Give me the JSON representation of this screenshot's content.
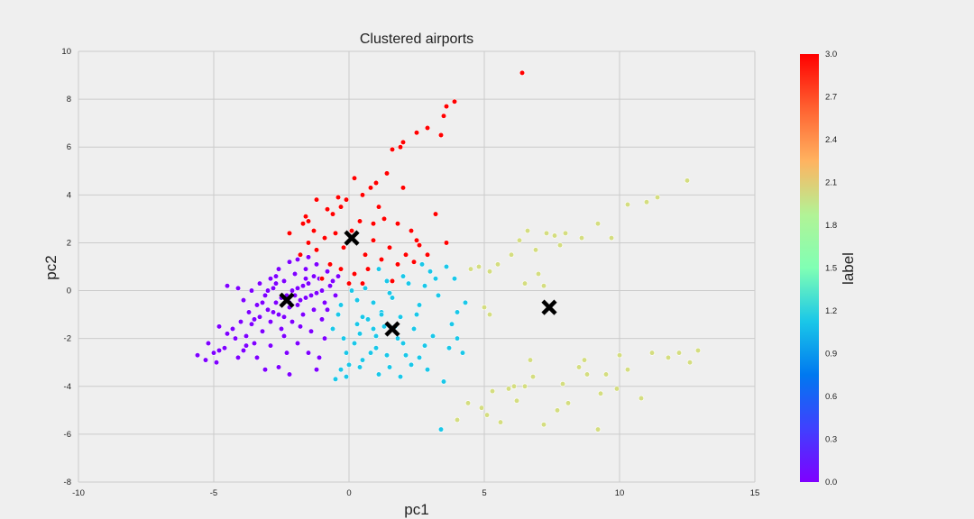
{
  "chart_data": {
    "type": "scatter",
    "title": "Clustered airports",
    "xlabel": "pc1",
    "ylabel": "pc2",
    "xlim": [
      -10,
      15
    ],
    "ylim": [
      -8,
      10
    ],
    "xticks": [
      "-10",
      "-5",
      "0",
      "5",
      "10",
      "15"
    ],
    "yticks": [
      "-8",
      "-6",
      "-4",
      "-2",
      "0",
      "2",
      "4",
      "6",
      "8",
      "10"
    ],
    "grid": true,
    "colorbar": {
      "label": "label",
      "range": [
        0.0,
        3.0
      ],
      "ticks": [
        "0.0",
        "0.3",
        "0.6",
        "0.9",
        "1.2",
        "1.5",
        "1.8",
        "2.1",
        "2.4",
        "2.7",
        "3.0"
      ],
      "colormap": "rainbow"
    },
    "clusters": [
      {
        "label": 0,
        "color": "#7f00ff",
        "points": [
          [
            -5.6,
            -2.7
          ],
          [
            -5.3,
            -2.9
          ],
          [
            -5.2,
            -2.2
          ],
          [
            -5.0,
            -2.6
          ],
          [
            -4.9,
            -3.0
          ],
          [
            -4.8,
            -2.5
          ],
          [
            -4.6,
            -2.4
          ],
          [
            -4.5,
            -1.8
          ],
          [
            -4.3,
            -1.6
          ],
          [
            -4.2,
            -2.0
          ],
          [
            -4.1,
            -2.8
          ],
          [
            -4.0,
            -1.3
          ],
          [
            -3.9,
            -2.5
          ],
          [
            -3.8,
            -1.9
          ],
          [
            -3.7,
            -0.9
          ],
          [
            -3.6,
            -1.4
          ],
          [
            -3.5,
            -2.2
          ],
          [
            -3.4,
            -0.6
          ],
          [
            -3.3,
            -1.1
          ],
          [
            -3.2,
            -1.7
          ],
          [
            -3.1,
            -0.2
          ],
          [
            -3.0,
            -0.8
          ],
          [
            -2.9,
            -1.3
          ],
          [
            -2.8,
            0.1
          ],
          [
            -2.7,
            -0.5
          ],
          [
            -2.6,
            -1.0
          ],
          [
            -2.5,
            -1.6
          ],
          [
            -2.4,
            0.4
          ],
          [
            -2.3,
            -0.2
          ],
          [
            -2.2,
            -0.7
          ],
          [
            -2.1,
            -1.3
          ],
          [
            -2.0,
            0.7
          ],
          [
            -1.9,
            0.1
          ],
          [
            -1.8,
            -0.4
          ],
          [
            -1.7,
            -1.0
          ],
          [
            -1.6,
            0.9
          ],
          [
            -1.5,
            0.3
          ],
          [
            -1.4,
            -0.2
          ],
          [
            -1.3,
            -0.8
          ],
          [
            -1.2,
            1.1
          ],
          [
            -1.1,
            0.5
          ],
          [
            -1.0,
            0.0
          ],
          [
            -0.9,
            -0.5
          ],
          [
            -0.8,
            0.8
          ],
          [
            -0.7,
            0.2
          ],
          [
            -2.6,
            0.9
          ],
          [
            -2.9,
            0.5
          ],
          [
            -3.3,
            0.3
          ],
          [
            -3.6,
            0.0
          ],
          [
            -3.9,
            -0.4
          ],
          [
            -2.2,
            1.2
          ],
          [
            -1.9,
            1.3
          ],
          [
            -1.5,
            1.4
          ],
          [
            -2.4,
            -1.9
          ],
          [
            -1.9,
            -2.2
          ],
          [
            -1.5,
            -2.6
          ],
          [
            -2.9,
            -2.3
          ],
          [
            -3.4,
            -2.8
          ],
          [
            -2.6,
            -3.2
          ],
          [
            -1.2,
            -3.3
          ],
          [
            -2.2,
            -3.5
          ],
          [
            -4.1,
            0.1
          ],
          [
            -2.2,
            -0.5
          ],
          [
            -2.3,
            -0.4
          ],
          [
            -2.5,
            -0.3
          ],
          [
            -2.0,
            -0.2
          ],
          [
            -2.1,
            0.0
          ],
          [
            -1.7,
            0.2
          ],
          [
            -1.6,
            0.5
          ],
          [
            -1.2,
            -0.1
          ],
          [
            -1.3,
            0.6
          ],
          [
            -2.7,
            0.3
          ],
          [
            -3.0,
            0.0
          ],
          [
            -2.8,
            -0.9
          ],
          [
            -3.2,
            -0.5
          ],
          [
            -1.0,
            -1.2
          ],
          [
            -0.8,
            -0.8
          ],
          [
            -0.6,
            0.4
          ],
          [
            -0.5,
            -0.2
          ],
          [
            -0.4,
            0.6
          ],
          [
            -4.5,
            0.2
          ],
          [
            -4.8,
            -1.5
          ],
          [
            -3.8,
            -2.3
          ],
          [
            -1.8,
            -1.5
          ],
          [
            -0.9,
            -2.0
          ],
          [
            -1.4,
            -1.7
          ],
          [
            -2.3,
            -2.6
          ],
          [
            -1.1,
            -2.8
          ],
          [
            -3.1,
            -3.3
          ],
          [
            -2.7,
            0.6
          ],
          [
            -1.6,
            -0.3
          ],
          [
            -1.9,
            -0.6
          ],
          [
            -2.4,
            -1.1
          ],
          [
            -3.5,
            -1.2
          ]
        ]
      },
      {
        "label": 1,
        "color": "#1ac7e8",
        "points": [
          [
            -0.5,
            -3.7
          ],
          [
            -0.3,
            -3.3
          ],
          [
            -0.1,
            -2.6
          ],
          [
            0.0,
            -3.1
          ],
          [
            0.2,
            -2.2
          ],
          [
            0.4,
            -1.8
          ],
          [
            0.5,
            -2.9
          ],
          [
            0.7,
            -1.2
          ],
          [
            0.9,
            -0.5
          ],
          [
            1.0,
            -2.4
          ],
          [
            1.2,
            -0.9
          ],
          [
            1.3,
            -1.5
          ],
          [
            1.5,
            -3.2
          ],
          [
            1.6,
            -0.3
          ],
          [
            1.8,
            -2.0
          ],
          [
            1.9,
            -1.1
          ],
          [
            2.1,
            -2.7
          ],
          [
            2.2,
            0.3
          ],
          [
            2.4,
            -1.6
          ],
          [
            2.6,
            -0.6
          ],
          [
            2.8,
            -2.3
          ],
          [
            3.0,
            0.8
          ],
          [
            3.1,
            -1.9
          ],
          [
            3.3,
            -0.2
          ],
          [
            3.5,
            -3.8
          ],
          [
            3.6,
            1.0
          ],
          [
            3.8,
            -1.4
          ],
          [
            4.0,
            -0.9
          ],
          [
            4.2,
            -2.6
          ],
          [
            3.9,
            0.5
          ],
          [
            2.7,
            1.1
          ],
          [
            2.0,
            0.6
          ],
          [
            1.4,
            0.4
          ],
          [
            0.6,
            0.1
          ],
          [
            0.3,
            -0.4
          ],
          [
            -0.4,
            -1.0
          ],
          [
            -0.6,
            -1.6
          ],
          [
            -0.2,
            -2.0
          ],
          [
            0.8,
            -2.6
          ],
          [
            1.1,
            -3.5
          ],
          [
            2.3,
            -3.1
          ],
          [
            2.9,
            -3.3
          ],
          [
            3.4,
            -5.8
          ],
          [
            4.3,
            -0.5
          ],
          [
            4.0,
            -2.0
          ],
          [
            2.5,
            -1.0
          ],
          [
            1.7,
            -1.5
          ],
          [
            1.0,
            -1.9
          ],
          [
            0.3,
            -1.4
          ],
          [
            -0.3,
            -0.6
          ],
          [
            0.1,
            0.0
          ],
          [
            1.5,
            -0.1
          ],
          [
            2.8,
            0.2
          ],
          [
            3.2,
            0.5
          ],
          [
            1.2,
            -1.0
          ],
          [
            2.0,
            -2.2
          ],
          [
            0.5,
            -1.1
          ],
          [
            -0.1,
            -3.6
          ],
          [
            0.4,
            -3.2
          ],
          [
            3.7,
            -2.4
          ],
          [
            2.6,
            -2.8
          ],
          [
            1.9,
            -3.6
          ],
          [
            1.4,
            -2.7
          ],
          [
            0.9,
            -1.6
          ],
          [
            1.1,
            0.9
          ]
        ]
      },
      {
        "label": 2,
        "color": "#d4dd80",
        "points": [
          [
            4.5,
            0.9
          ],
          [
            4.8,
            1.0
          ],
          [
            5.2,
            0.8
          ],
          [
            5.5,
            1.1
          ],
          [
            6.0,
            1.5
          ],
          [
            6.3,
            2.1
          ],
          [
            6.6,
            2.5
          ],
          [
            6.9,
            1.7
          ],
          [
            7.3,
            2.4
          ],
          [
            7.6,
            2.3
          ],
          [
            8.0,
            2.4
          ],
          [
            8.6,
            2.2
          ],
          [
            9.2,
            2.8
          ],
          [
            9.7,
            2.2
          ],
          [
            10.3,
            3.6
          ],
          [
            11.0,
            3.7
          ],
          [
            11.4,
            3.9
          ],
          [
            12.5,
            4.6
          ],
          [
            5.0,
            -0.7
          ],
          [
            5.2,
            -1.0
          ],
          [
            7.0,
            0.7
          ],
          [
            6.5,
            0.3
          ],
          [
            7.8,
            1.9
          ],
          [
            7.2,
            0.2
          ],
          [
            5.3,
            -4.2
          ],
          [
            5.6,
            -5.5
          ],
          [
            5.9,
            -4.1
          ],
          [
            6.2,
            -4.6
          ],
          [
            6.8,
            -3.6
          ],
          [
            7.2,
            -5.6
          ],
          [
            7.7,
            -5.0
          ],
          [
            8.1,
            -4.7
          ],
          [
            8.5,
            -3.2
          ],
          [
            8.8,
            -3.5
          ],
          [
            9.2,
            -5.8
          ],
          [
            9.5,
            -3.5
          ],
          [
            9.9,
            -4.1
          ],
          [
            10.3,
            -3.3
          ],
          [
            10.8,
            -4.5
          ],
          [
            11.2,
            -2.6
          ],
          [
            11.8,
            -2.8
          ],
          [
            12.2,
            -2.6
          ],
          [
            12.6,
            -3.0
          ],
          [
            12.9,
            -2.5
          ],
          [
            9.3,
            -4.3
          ],
          [
            8.7,
            -2.9
          ],
          [
            6.5,
            -4.0
          ],
          [
            5.1,
            -5.2
          ],
          [
            4.4,
            -4.7
          ],
          [
            4.0,
            -5.4
          ],
          [
            4.9,
            -4.9
          ],
          [
            6.1,
            -4.0
          ],
          [
            7.9,
            -3.9
          ],
          [
            10.0,
            -2.7
          ],
          [
            6.7,
            -2.9
          ]
        ]
      },
      {
        "label": 3,
        "color": "#ff0000",
        "points": [
          [
            6.4,
            9.1
          ],
          [
            3.9,
            7.9
          ],
          [
            3.6,
            7.7
          ],
          [
            3.5,
            7.3
          ],
          [
            3.4,
            6.5
          ],
          [
            2.9,
            6.8
          ],
          [
            2.5,
            6.6
          ],
          [
            2.0,
            6.2
          ],
          [
            1.9,
            6.0
          ],
          [
            1.6,
            5.9
          ],
          [
            1.4,
            4.9
          ],
          [
            2.0,
            4.3
          ],
          [
            1.0,
            4.5
          ],
          [
            0.8,
            4.3
          ],
          [
            0.5,
            4.0
          ],
          [
            0.2,
            4.7
          ],
          [
            -0.1,
            3.8
          ],
          [
            -0.4,
            3.9
          ],
          [
            -1.2,
            3.8
          ],
          [
            -0.8,
            3.4
          ],
          [
            -1.5,
            2.9
          ],
          [
            -1.3,
            2.5
          ],
          [
            -1.7,
            2.8
          ],
          [
            -2.2,
            2.4
          ],
          [
            0.9,
            2.8
          ],
          [
            1.3,
            3.0
          ],
          [
            2.3,
            2.5
          ],
          [
            3.2,
            3.2
          ],
          [
            3.6,
            2.0
          ],
          [
            2.6,
            1.9
          ],
          [
            -1.8,
            1.5
          ],
          [
            -1.5,
            2.0
          ],
          [
            -1.2,
            1.7
          ],
          [
            -0.9,
            2.2
          ],
          [
            -0.5,
            2.4
          ],
          [
            -0.2,
            1.8
          ],
          [
            0.1,
            2.5
          ],
          [
            0.4,
            2.9
          ],
          [
            0.6,
            1.5
          ],
          [
            0.9,
            2.1
          ],
          [
            1.2,
            1.3
          ],
          [
            1.5,
            1.8
          ],
          [
            1.8,
            1.1
          ],
          [
            2.1,
            1.5
          ],
          [
            2.4,
            1.2
          ],
          [
            -0.7,
            1.1
          ],
          [
            -0.3,
            0.9
          ],
          [
            0.2,
            0.7
          ],
          [
            0.5,
            0.3
          ],
          [
            -1.0,
            0.5
          ],
          [
            0.0,
            0.3
          ],
          [
            0.7,
            0.9
          ],
          [
            1.6,
            0.4
          ],
          [
            2.5,
            2.1
          ],
          [
            2.9,
            1.5
          ],
          [
            1.1,
            3.5
          ],
          [
            -0.6,
            3.2
          ],
          [
            -1.6,
            3.1
          ],
          [
            -0.3,
            3.5
          ],
          [
            1.8,
            2.8
          ]
        ]
      }
    ],
    "centroids": [
      [
        -2.3,
        -0.4
      ],
      [
        1.6,
        -1.6
      ],
      [
        7.4,
        -0.7
      ],
      [
        0.1,
        2.2
      ]
    ]
  }
}
